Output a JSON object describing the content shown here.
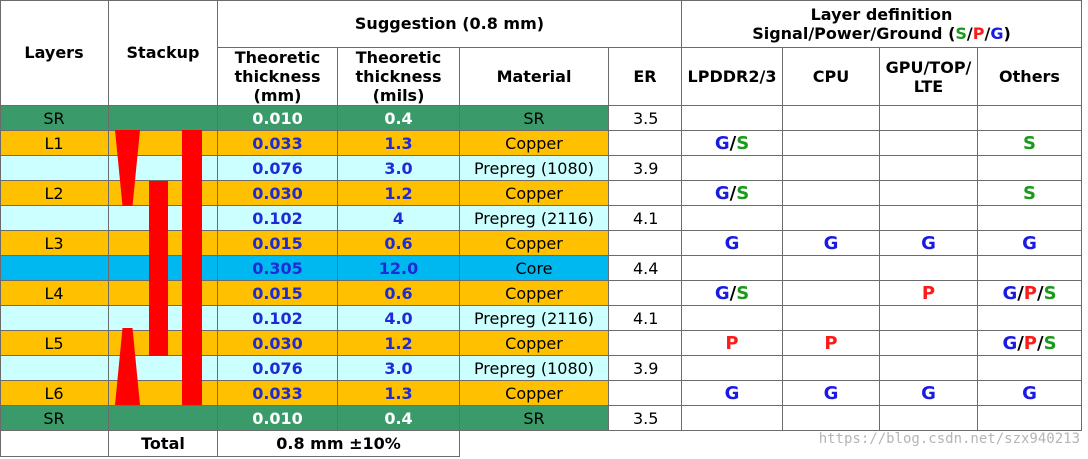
{
  "header": {
    "layers": "Layers",
    "stackup": "Stackup",
    "suggestion": "Suggestion (0.8 mm)",
    "layer_definition_line1": "Layer definition",
    "layer_definition_prefix": "Signal/Power/Ground (",
    "layer_definition_s": "S",
    "layer_definition_p": "P",
    "layer_definition_g": "G",
    "slash": "/",
    "layer_definition_suffix": ")",
    "thick_mm": [
      "Theoretic",
      "thickness",
      "(mm)"
    ],
    "thick_mils": [
      "Theoretic",
      "thickness",
      "(mils)"
    ],
    "material": "Material",
    "er": "ER",
    "lpddr": "LPDDR2/3",
    "cpu": "CPU",
    "gpu": [
      "GPU/TOP/",
      "LTE"
    ],
    "others": "Others"
  },
  "rows": [
    {
      "layer": "SR",
      "mm": "0.010",
      "mils": "0.4",
      "material": "SR",
      "er": "3.5",
      "kind": "sr"
    },
    {
      "layer": "L1",
      "mm": "0.033",
      "mils": "1.3",
      "material": "Copper",
      "er": "",
      "kind": "copper"
    },
    {
      "layer": "",
      "mm": "0.076",
      "mils": "3.0",
      "material": "Prepreg (1080)",
      "er": "3.9",
      "kind": "prepreg"
    },
    {
      "layer": "L2",
      "mm": "0.030",
      "mils": "1.2",
      "material": "Copper",
      "er": "",
      "kind": "copper"
    },
    {
      "layer": "",
      "mm": "0.102",
      "mils": "4",
      "material": "Prepreg (2116)",
      "er": "4.1",
      "kind": "prepreg"
    },
    {
      "layer": "L3",
      "mm": "0.015",
      "mils": "0.6",
      "material": "Copper",
      "er": "",
      "kind": "copper"
    },
    {
      "layer": "",
      "mm": "0.305",
      "mils": "12.0",
      "material": "Core",
      "er": "4.4",
      "kind": "core"
    },
    {
      "layer": "L4",
      "mm": "0.015",
      "mils": "0.6",
      "material": "Copper",
      "er": "",
      "kind": "copper"
    },
    {
      "layer": "",
      "mm": "0.102",
      "mils": "4.0",
      "material": "Prepreg (2116)",
      "er": "4.1",
      "kind": "prepreg"
    },
    {
      "layer": "L5",
      "mm": "0.030",
      "mils": "1.2",
      "material": "Copper",
      "er": "",
      "kind": "copper"
    },
    {
      "layer": "",
      "mm": "0.076",
      "mils": "3.0",
      "material": "Prepreg (1080)",
      "er": "3.9",
      "kind": "prepreg"
    },
    {
      "layer": "L6",
      "mm": "0.033",
      "mils": "1.3",
      "material": "Copper",
      "er": "",
      "kind": "copper"
    },
    {
      "layer": "SR",
      "mm": "0.010",
      "mils": "0.4",
      "material": "SR",
      "er": "3.5",
      "kind": "sr"
    }
  ],
  "definitions": [
    {
      "row": 1,
      "lpddr": "G/S",
      "cpu": "",
      "gpu": "",
      "others": "S"
    },
    {
      "row": 3,
      "lpddr": "G/S",
      "cpu": "",
      "gpu": "",
      "others": "S"
    },
    {
      "row": 5,
      "lpddr": "G",
      "cpu": "G",
      "gpu": "G",
      "others": "G"
    },
    {
      "row": 7,
      "lpddr": "G/S",
      "cpu": "",
      "gpu": "P",
      "others": "G/P/S"
    },
    {
      "row": 9,
      "lpddr": "P",
      "cpu": "P",
      "gpu": "",
      "others": "G/P/S"
    },
    {
      "row": 11,
      "lpddr": "G",
      "cpu": "G",
      "gpu": "G",
      "others": "G"
    }
  ],
  "total": {
    "label": "Total",
    "value": "0.8 mm ±10%"
  },
  "colors": {
    "sr": "#3a9a6a",
    "copper": "#ffc000",
    "prepreg": "#ccffff",
    "core": "#00b8f0",
    "stackup_bar": "#ff0000",
    "signal": "#1a9a1a",
    "power": "#ff1a1a",
    "ground": "#1a1ae6"
  },
  "watermark": "https://blog.csdn.net/szx940213"
}
